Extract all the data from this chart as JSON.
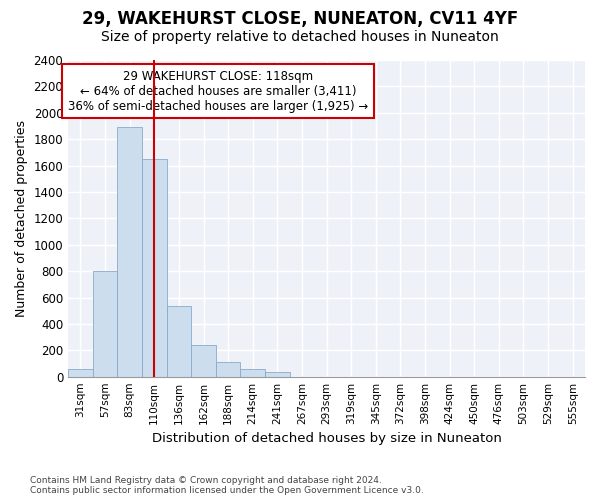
{
  "title": "29, WAKEHURST CLOSE, NUNEATON, CV11 4YF",
  "subtitle": "Size of property relative to detached houses in Nuneaton",
  "xlabel": "Distribution of detached houses by size in Nuneaton",
  "ylabel": "Number of detached properties",
  "categories": [
    "31sqm",
    "57sqm",
    "83sqm",
    "110sqm",
    "136sqm",
    "162sqm",
    "188sqm",
    "214sqm",
    "241sqm",
    "267sqm",
    "293sqm",
    "319sqm",
    "345sqm",
    "372sqm",
    "398sqm",
    "424sqm",
    "450sqm",
    "476sqm",
    "503sqm",
    "529sqm",
    "555sqm"
  ],
  "values": [
    55,
    800,
    1890,
    1650,
    535,
    238,
    108,
    58,
    32,
    0,
    0,
    0,
    0,
    0,
    0,
    0,
    0,
    0,
    0,
    0,
    0
  ],
  "bar_color": "#ccdded",
  "bar_edge_color": "#88aacc",
  "marker_line_color": "#cc0000",
  "annotation_line1": "29 WAKEHURST CLOSE: 118sqm",
  "annotation_line2": "← 64% of detached houses are smaller (3,411)",
  "annotation_line3": "36% of semi-detached houses are larger (1,925) →",
  "annotation_box_color": "#cc0000",
  "ylim": [
    0,
    2400
  ],
  "yticks": [
    0,
    200,
    400,
    600,
    800,
    1000,
    1200,
    1400,
    1600,
    1800,
    2000,
    2200,
    2400
  ],
  "footer_line1": "Contains HM Land Registry data © Crown copyright and database right 2024.",
  "footer_line2": "Contains public sector information licensed under the Open Government Licence v3.0.",
  "title_fontsize": 12,
  "subtitle_fontsize": 10,
  "bg_color": "#ffffff",
  "plot_bg_color": "#eef2f8"
}
